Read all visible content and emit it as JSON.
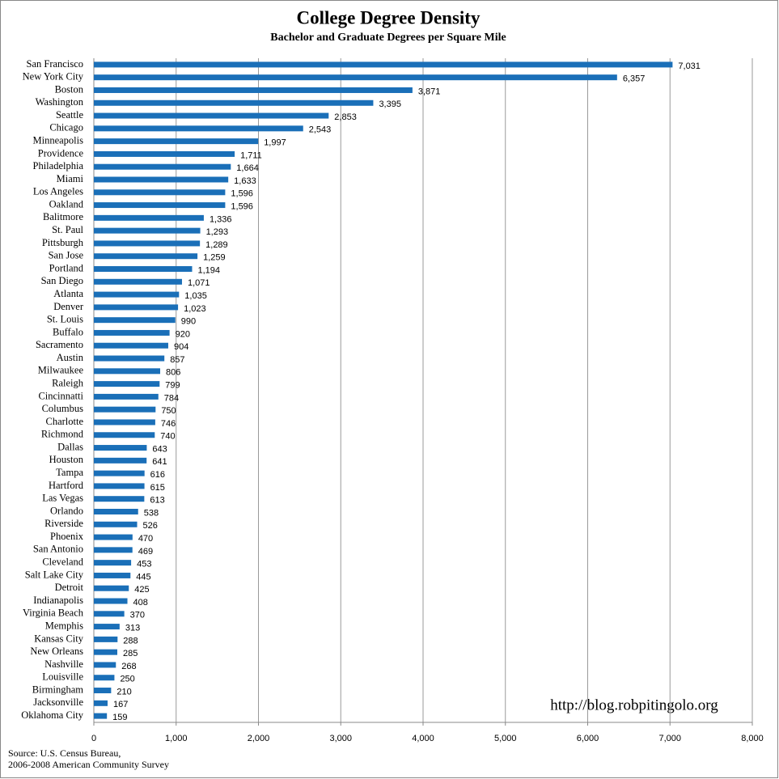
{
  "chart_data": {
    "type": "hbar",
    "title": "College Degree Density",
    "subtitle": "Bachelor and Graduate Degrees per Square Mile",
    "categories": [
      "San Francisco",
      "New York City",
      "Boston",
      "Washington",
      "Seattle",
      "Chicago",
      "Minneapolis",
      "Providence",
      "Philadelphia",
      "Miami",
      "Los Angeles",
      "Oakland",
      "Balitmore",
      "St. Paul",
      "Pittsburgh",
      "San Jose",
      "Portland",
      "San Diego",
      "Atlanta",
      "Denver",
      "St. Louis",
      "Buffalo",
      "Sacramento",
      "Austin",
      "Milwaukee",
      "Raleigh",
      "Cincinnatti",
      "Columbus",
      "Charlotte",
      "Richmond",
      "Dallas",
      "Houston",
      "Tampa",
      "Hartford",
      "Las Vegas",
      "Orlando",
      "Riverside",
      "Phoenix",
      "San Antonio",
      "Cleveland",
      "Salt Lake City",
      "Detroit",
      "Indianapolis",
      "Virginia Beach",
      "Memphis",
      "Kansas City",
      "New Orleans",
      "Nashville",
      "Louisville",
      "Birmingham",
      "Jacksonville",
      "Oklahoma City"
    ],
    "values": [
      7031,
      6357,
      3871,
      3395,
      2853,
      2543,
      1997,
      1711,
      1664,
      1633,
      1596,
      1596,
      1336,
      1293,
      1289,
      1259,
      1194,
      1071,
      1035,
      1023,
      990,
      920,
      904,
      857,
      806,
      799,
      784,
      750,
      746,
      740,
      643,
      641,
      616,
      615,
      613,
      538,
      526,
      470,
      469,
      453,
      445,
      425,
      408,
      370,
      313,
      288,
      285,
      268,
      250,
      210,
      167,
      159
    ],
    "value_labels": [
      "7,031",
      "6,357",
      "3,871",
      "3,395",
      "2,853",
      "2,543",
      "1,997",
      "1,711",
      "1,664",
      "1,633",
      "1,596",
      "1,596",
      "1,336",
      "1,293",
      "1,289",
      "1,259",
      "1,194",
      "1,071",
      "1,035",
      "1,023",
      "990",
      "920",
      "904",
      "857",
      "806",
      "799",
      "784",
      "750",
      "746",
      "740",
      "643",
      "641",
      "616",
      "615",
      "613",
      "538",
      "526",
      "470",
      "469",
      "453",
      "445",
      "425",
      "408",
      "370",
      "313",
      "288",
      "285",
      "268",
      "250",
      "210",
      "167",
      "159"
    ],
    "color": "#1a6fb8",
    "xlim": [
      0,
      8000
    ],
    "xticks": [
      0,
      {
        "value": 1000,
        "label": "1,000"
      },
      {
        "value": 2000,
        "label": "2,000"
      },
      {
        "value": 3000,
        "label": "3,000"
      },
      {
        "value": 4000,
        "label": "4,000"
      },
      {
        "value": 5000,
        "label": "5,000"
      },
      {
        "value": 6000,
        "label": "6,000"
      },
      {
        "value": 7000,
        "label": "7,000"
      },
      {
        "value": 8000,
        "label": "8,000"
      }
    ],
    "grid": true,
    "watermark": "http://blog.robpitingolo.org",
    "source": [
      "Source: U.S. Census Bureau,",
      "2006-2008 American Community Survey"
    ]
  }
}
